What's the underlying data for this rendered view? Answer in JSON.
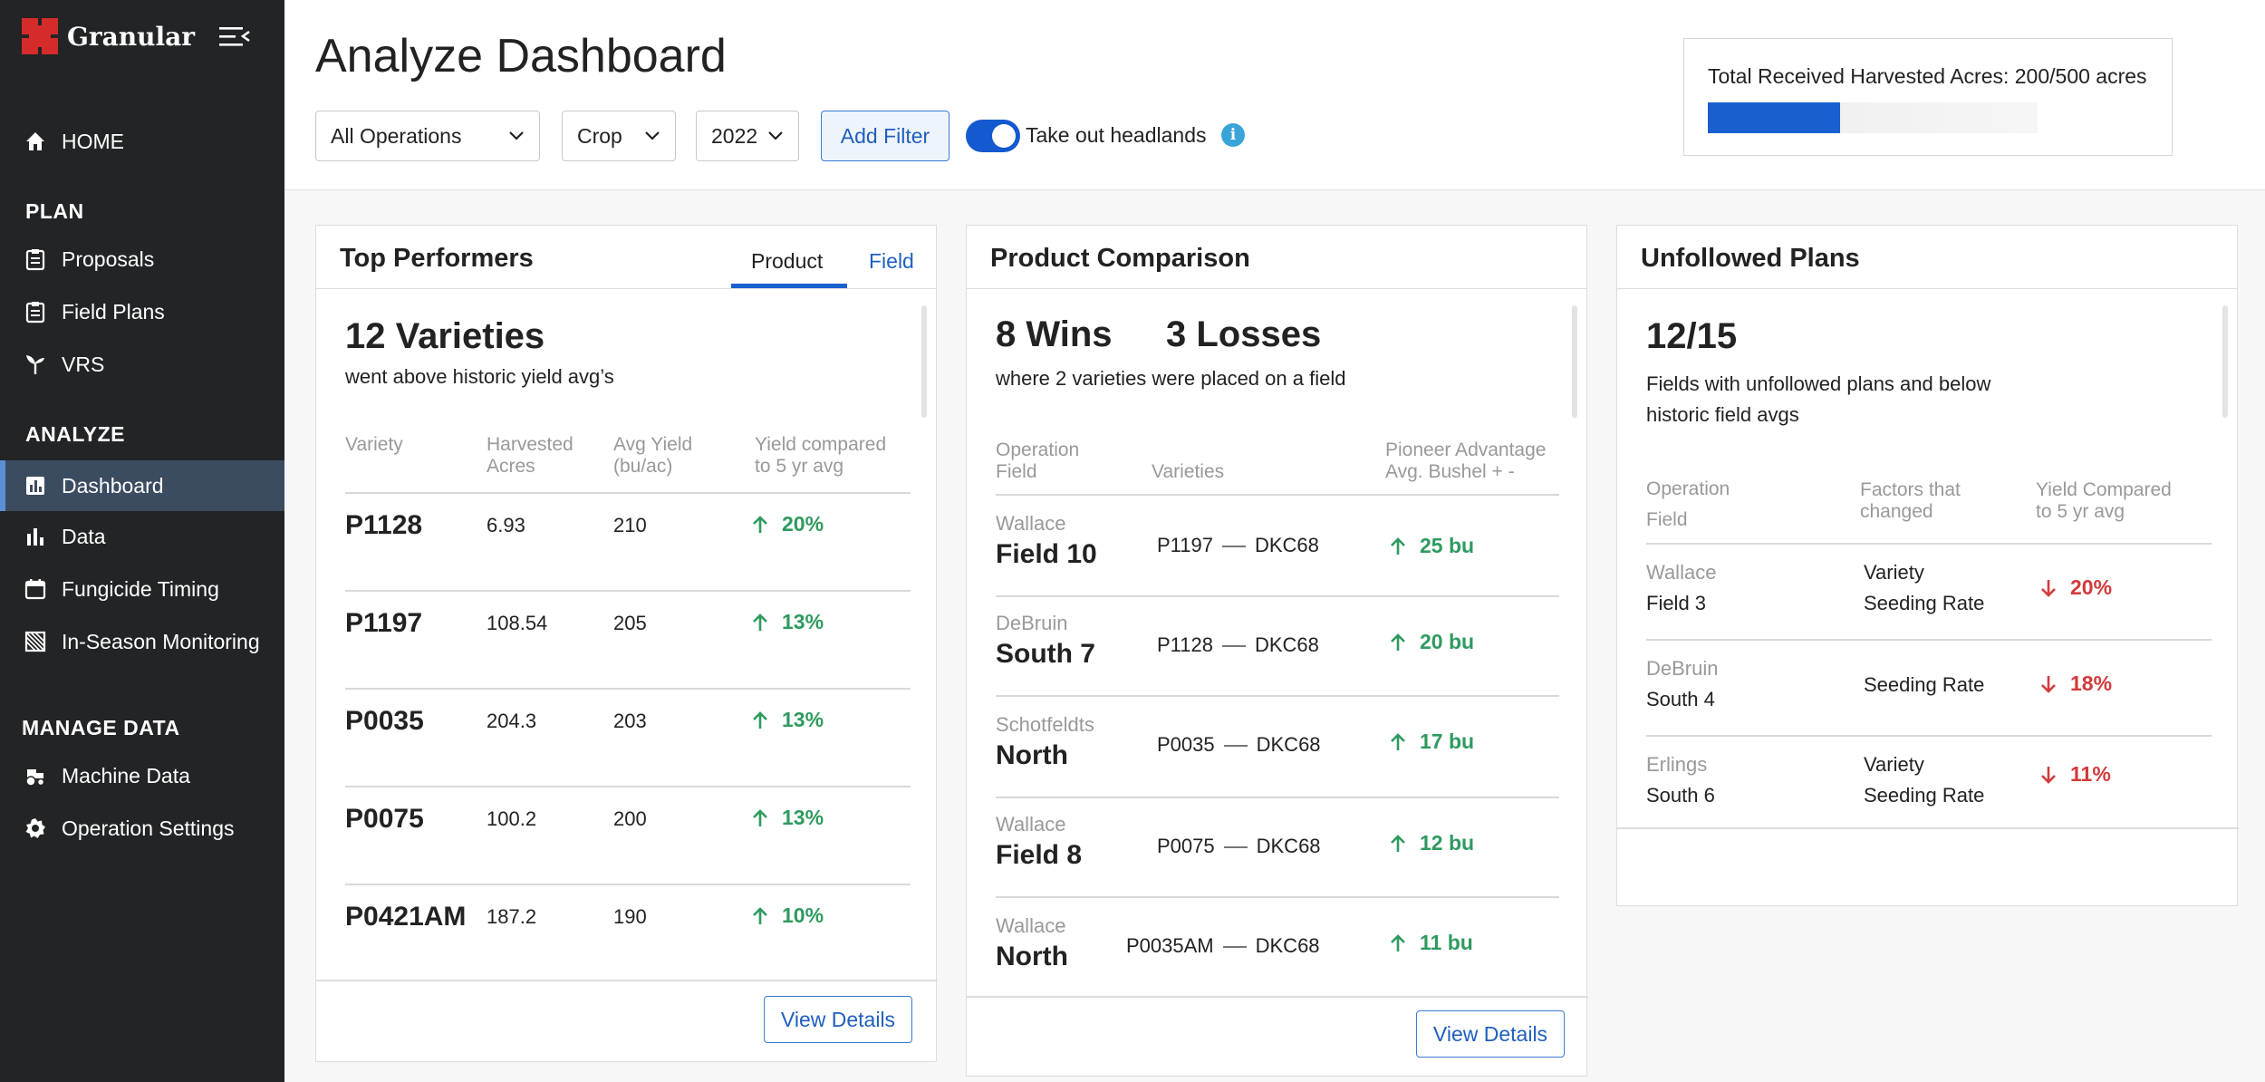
{
  "app": {
    "name": "Granular"
  },
  "sidebar": {
    "home": "HOME",
    "plan_section": "PLAN",
    "plan_items": [
      "Proposals",
      "Field Plans",
      "VRS"
    ],
    "analyze_section": "ANALYZE",
    "analyze_items": [
      "Dashboard",
      "Data",
      "Fungicide Timing",
      "In-Season Monitoring"
    ],
    "manage_section": "MANAGE DATA",
    "manage_items": [
      "Machine Data",
      "Operation Settings"
    ],
    "active_item": "Dashboard"
  },
  "header": {
    "title": "Analyze Dashboard",
    "filters": {
      "operations": "All Operations",
      "crop": "Crop",
      "year": "2022"
    },
    "add_filter": "Add Filter",
    "headlands_toggle": {
      "label": "Take out headlands",
      "on": true
    },
    "info_icon": "i",
    "acres": {
      "label": "Total Received Harvested Acres: 200/500 acres",
      "received": 200,
      "total": 500
    }
  },
  "top_performers": {
    "title": "Top Performers",
    "tabs": [
      "Product",
      "Field"
    ],
    "active_tab": "Product",
    "headline": "12 Varieties",
    "subtitle": "went above historic yield avg’s",
    "columns": {
      "variety": "Variety",
      "acres": [
        "Harvested",
        "Acres"
      ],
      "yield": [
        "Avg Yield",
        "(bu/ac)"
      ],
      "compare": [
        "Yield compared",
        "to 5 yr avg"
      ]
    },
    "rows": [
      {
        "variety": "P1128",
        "acres": "6.93",
        "yield": "210",
        "change": "20%"
      },
      {
        "variety": "P1197",
        "acres": "108.54",
        "yield": "205",
        "change": "13%"
      },
      {
        "variety": "P0035",
        "acres": "204.3",
        "yield": "203",
        "change": "13%"
      },
      {
        "variety": "P0075",
        "acres": "100.2",
        "yield": "200",
        "change": "13%"
      },
      {
        "variety": "P0421AM",
        "acres": "187.2",
        "yield": "190",
        "change": "10%"
      }
    ],
    "button": "View Details"
  },
  "product_comparison": {
    "title": "Product Comparison",
    "wins": "8 Wins",
    "losses": "3 Losses",
    "subtitle": "where 2 varieties were placed on a field",
    "columns": {
      "operation": [
        "Operation",
        "Field"
      ],
      "varieties": "Varieties",
      "advantage": [
        "Pioneer Advantage",
        "Avg. Bushel + -"
      ]
    },
    "rows": [
      {
        "operation": "Wallace",
        "field": "Field 10",
        "a": "P1197",
        "b": "DKC68",
        "adv": "25 bu"
      },
      {
        "operation": "DeBruin",
        "field": "South 7",
        "a": "P1128",
        "b": "DKC68",
        "adv": "20 bu"
      },
      {
        "operation": "Schotfeldts",
        "field": "North",
        "a": "P0035",
        "b": "DKC68",
        "adv": "17 bu"
      },
      {
        "operation": "Wallace",
        "field": "Field 8",
        "a": "P0075",
        "b": "DKC68",
        "adv": "12 bu"
      },
      {
        "operation": "Wallace",
        "field": "North",
        "a": "P0035AM",
        "b": "DKC68",
        "adv": "11 bu"
      }
    ],
    "button": "View Details"
  },
  "unfollowed_plans": {
    "title": "Unfollowed Plans",
    "headline": "12/15",
    "subtitle_1": "Fields with unfollowed plans and below",
    "subtitle_2": "historic field avgs",
    "columns": {
      "operation": [
        "Operation",
        "Field"
      ],
      "factors": [
        "Factors that",
        "changed"
      ],
      "yield": [
        "Yield Compared",
        "to 5 yr avg"
      ]
    },
    "rows": [
      {
        "operation": "Wallace",
        "field": "Field 3",
        "factors": [
          "Variety",
          "Seeding Rate"
        ],
        "change": "20%"
      },
      {
        "operation": "DeBruin",
        "field": "South 4",
        "factors": [
          "Seeding Rate"
        ],
        "change": "18%"
      },
      {
        "operation": "Erlings",
        "field": "South 6",
        "factors": [
          "Variety",
          "Seeding Rate"
        ],
        "change": "11%"
      }
    ]
  },
  "colors": {
    "accent": "#1a5fd0",
    "positive": "#2e9a5f",
    "negative": "#d23a3a",
    "sidebar": "#222426",
    "logo": "#d62b2b"
  },
  "icons": {
    "home": "home-icon",
    "proposals": "clipboard-icon",
    "field_plans": "clipboard-icon",
    "vrs": "sprout-icon",
    "dashboard": "bar-chart-icon",
    "data": "bar-chart-icon",
    "fungicide": "calendar-icon",
    "monitoring": "satellite-map-icon",
    "machine": "tractor-icon",
    "settings": "gear-icon",
    "up": "arrow-up-icon",
    "down": "arrow-down-icon"
  }
}
